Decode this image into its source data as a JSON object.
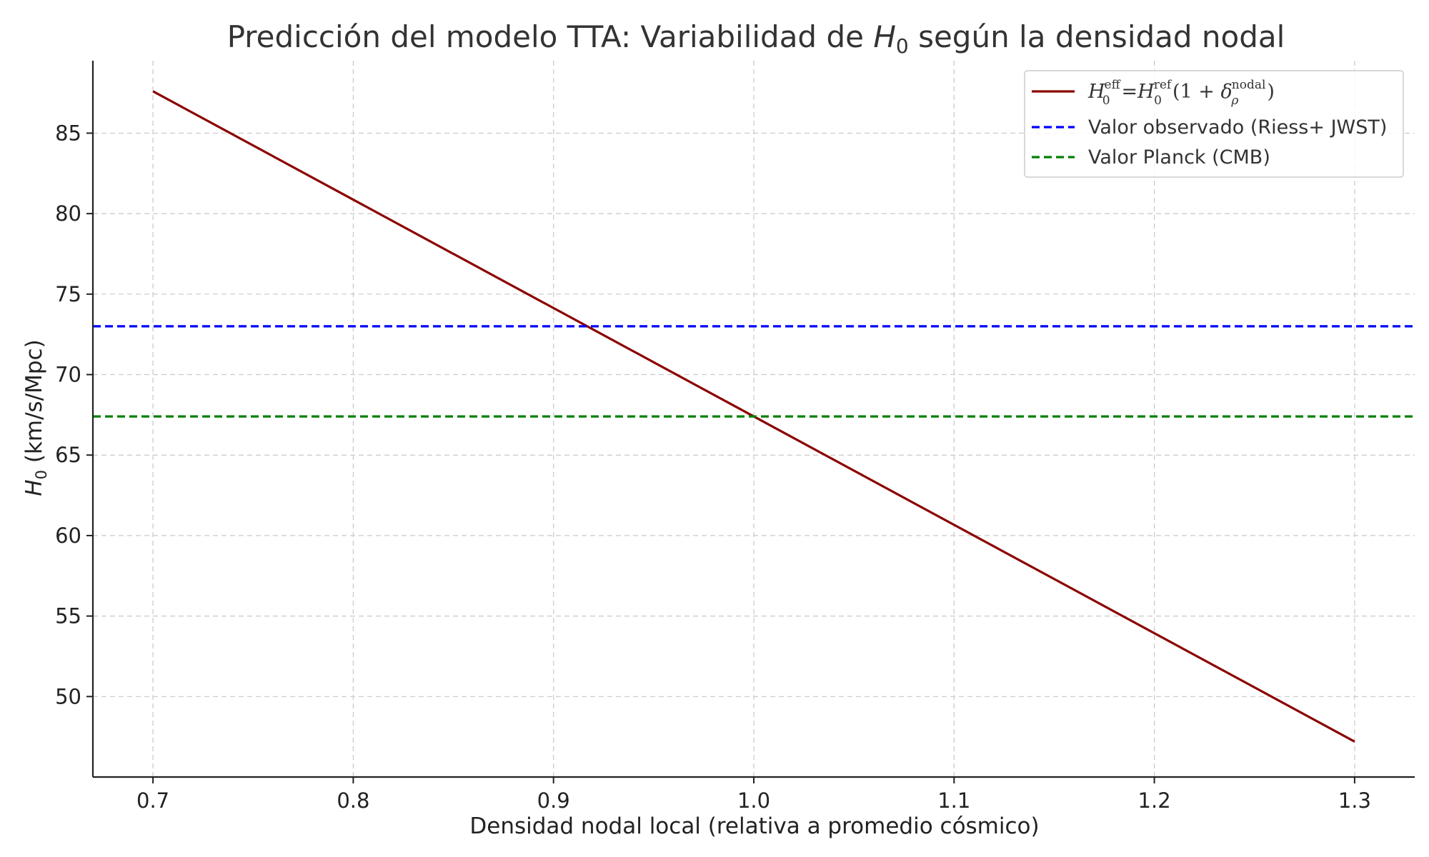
{
  "chart_data": {
    "type": "line",
    "title": "Predicción del modelo TTA: Variabilidad de H₀ según la densidad nodal",
    "title_parts": {
      "before": "Predicción del modelo TTA: Variabilidad de ",
      "var": "H",
      "sub": "0",
      "after": " según la densidad nodal"
    },
    "xlabel": "Densidad nodal local (relativa a promedio cósmico)",
    "ylabel": "H₀ (km/s/Mpc)",
    "ylabel_parts": {
      "var": "H",
      "sub": "0",
      "after": " (km/s/Mpc)"
    },
    "xlim": [
      0.67,
      1.33
    ],
    "ylim": [
      45.0,
      89.5
    ],
    "x_ticks": [
      0.7,
      0.8,
      0.9,
      1.0,
      1.1,
      1.2,
      1.3
    ],
    "x_tick_labels": [
      "0.7",
      "0.8",
      "0.9",
      "1.0",
      "1.1",
      "1.2",
      "1.3"
    ],
    "y_ticks": [
      50,
      55,
      60,
      65,
      70,
      75,
      80,
      85
    ],
    "y_tick_labels": [
      "50",
      "55",
      "60",
      "65",
      "70",
      "75",
      "80",
      "85"
    ],
    "grid": true,
    "legend_position": "top-right",
    "series": [
      {
        "name": "H₀^eff = H₀^ref(1 + δ_ρ^nodal)",
        "style": "solid",
        "color": "#8b0000",
        "x": [
          0.7,
          1.3
        ],
        "y": [
          87.6,
          47.2
        ]
      },
      {
        "name": "Valor observado (Riess+ JWST)",
        "style": "dashed",
        "color": "#0000ff",
        "hline": 73.0
      },
      {
        "name": "Valor Planck (CMB)",
        "style": "dashed",
        "color": "#008000",
        "hline": 67.4
      }
    ],
    "legend_entries": {
      "formula": {
        "h1": "H",
        "sub1": "0",
        "sup1": "eff",
        "eq": "=",
        "h2": "H",
        "sub2": "0",
        "sup2": "ref",
        "open": "(1 + ",
        "delta": "δ",
        "sub3": "ρ",
        "sup3": "nodal",
        "close": ")"
      },
      "observed": "Valor observado (Riess+ JWST)",
      "planck": "Valor Planck (CMB)"
    }
  }
}
